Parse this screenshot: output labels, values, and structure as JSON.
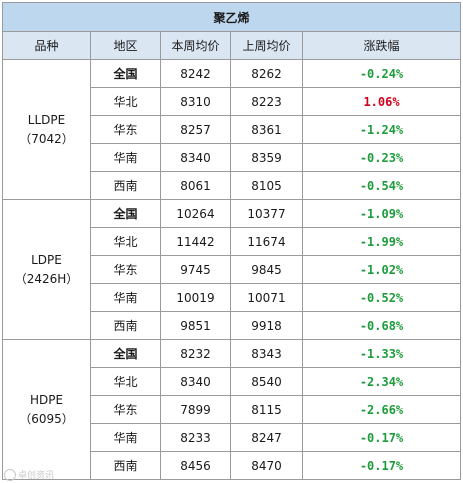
{
  "title": "聚乙烯",
  "headers": [
    "品种",
    "地区",
    "本周均价",
    "上周均价",
    "涨跌幅"
  ],
  "colors": {
    "up": "#d0021b",
    "down": "#1e9c3c",
    "title_bg": "#bdd7ee",
    "header_bg": "#dbe6f3"
  },
  "groups": [
    {
      "name": "LLDPE",
      "code": "（7042）",
      "rows": [
        {
          "region": "全国",
          "this_week": "8242",
          "last_week": "8262",
          "change": "-0.24%",
          "dir": "down",
          "bold": true
        },
        {
          "region": "华北",
          "this_week": "8310",
          "last_week": "8223",
          "change": "1.06%",
          "dir": "up",
          "bold": false
        },
        {
          "region": "华东",
          "this_week": "8257",
          "last_week": "8361",
          "change": "-1.24%",
          "dir": "down",
          "bold": false
        },
        {
          "region": "华南",
          "this_week": "8340",
          "last_week": "8359",
          "change": "-0.23%",
          "dir": "down",
          "bold": false
        },
        {
          "region": "西南",
          "this_week": "8061",
          "last_week": "8105",
          "change": "-0.54%",
          "dir": "down",
          "bold": false
        }
      ]
    },
    {
      "name": "LDPE",
      "code": "（2426H）",
      "rows": [
        {
          "region": "全国",
          "this_week": "10264",
          "last_week": "10377",
          "change": "-1.09%",
          "dir": "down",
          "bold": true
        },
        {
          "region": "华北",
          "this_week": "11442",
          "last_week": "11674",
          "change": "-1.99%",
          "dir": "down",
          "bold": false
        },
        {
          "region": "华东",
          "this_week": "9745",
          "last_week": "9845",
          "change": "-1.02%",
          "dir": "down",
          "bold": false
        },
        {
          "region": "华南",
          "this_week": "10019",
          "last_week": "10071",
          "change": "-0.52%",
          "dir": "down",
          "bold": false
        },
        {
          "region": "西南",
          "this_week": "9851",
          "last_week": "9918",
          "change": "-0.68%",
          "dir": "down",
          "bold": false
        }
      ]
    },
    {
      "name": "HDPE",
      "code": "（6095）",
      "rows": [
        {
          "region": "全国",
          "this_week": "8232",
          "last_week": "8343",
          "change": "-1.33%",
          "dir": "down",
          "bold": true
        },
        {
          "region": "华北",
          "this_week": "8340",
          "last_week": "8540",
          "change": "-2.34%",
          "dir": "down",
          "bold": false
        },
        {
          "region": "华东",
          "this_week": "7899",
          "last_week": "8115",
          "change": "-2.66%",
          "dir": "down",
          "bold": false
        },
        {
          "region": "华南",
          "this_week": "8233",
          "last_week": "8247",
          "change": "-0.17%",
          "dir": "down",
          "bold": false
        },
        {
          "region": "西南",
          "this_week": "8456",
          "last_week": "8470",
          "change": "-0.17%",
          "dir": "down",
          "bold": false
        }
      ]
    }
  ],
  "watermark": {
    "text": "卓创资讯",
    "icon": "weibo-logo-icon"
  }
}
